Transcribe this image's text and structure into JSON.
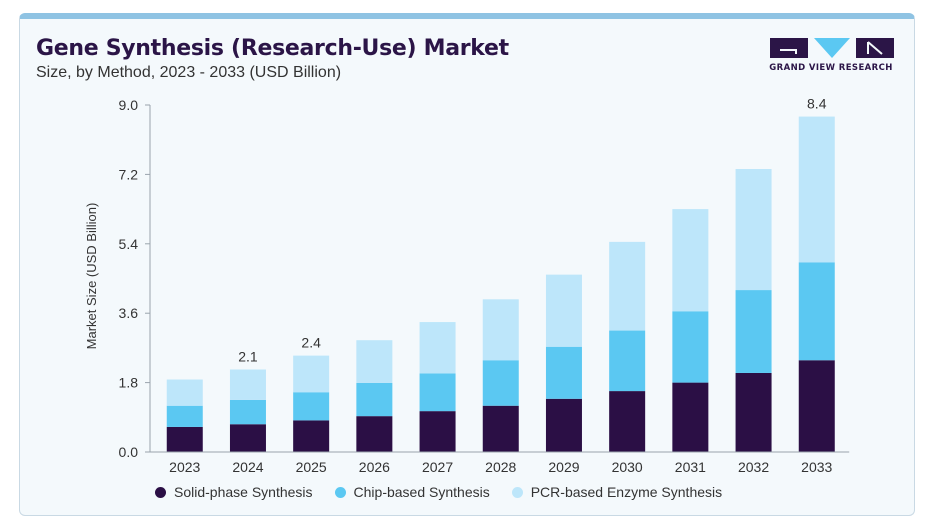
{
  "header": {
    "title": "Gene Synthesis (Research-Use) Market",
    "subtitle": "Size, by Method, 2023 - 2033 (USD Billion)"
  },
  "brand": {
    "name": "GRAND VIEW RESEARCH",
    "logo_icon": "grand-view-research-logo-icon",
    "color_primary": "#2b1547",
    "color_accent": "#5bc8f2"
  },
  "chart_data": {
    "type": "bar",
    "stacked": true,
    "title": "Gene Synthesis (Research-Use) Market",
    "subtitle": "Size, by Method, 2023 - 2033 (USD Billion)",
    "xlabel": "",
    "ylabel": "Market Size (USD Billion)",
    "ylim": [
      0,
      9.0
    ],
    "yticks": [
      "0.0",
      "1.8",
      "3.6",
      "5.4",
      "7.2",
      "9.0"
    ],
    "grid": false,
    "legend_position": "bottom",
    "categories": [
      "2023",
      "2024",
      "2025",
      "2026",
      "2027",
      "2028",
      "2029",
      "2030",
      "2031",
      "2032",
      "2033"
    ],
    "series": [
      {
        "name": "Solid-phase Synthesis",
        "color": "#2b0f45",
        "values": [
          0.65,
          0.72,
          0.82,
          0.93,
          1.06,
          1.2,
          1.38,
          1.58,
          1.8,
          2.05,
          2.38
        ]
      },
      {
        "name": "Chip-based Synthesis",
        "color": "#5bc8f2",
        "values": [
          0.55,
          0.63,
          0.73,
          0.86,
          0.98,
          1.18,
          1.35,
          1.57,
          1.85,
          2.15,
          2.54
        ]
      },
      {
        "name": "PCR-based Enzyme Synthesis",
        "color": "#bde6fa",
        "values": [
          0.68,
          0.79,
          0.95,
          1.11,
          1.33,
          1.58,
          1.87,
          2.3,
          2.65,
          3.14,
          3.78
        ]
      }
    ],
    "data_labels": [
      {
        "category": "2024",
        "text": "2.1"
      },
      {
        "category": "2025",
        "text": "2.4"
      },
      {
        "category": "2033",
        "text": "8.4"
      }
    ]
  }
}
